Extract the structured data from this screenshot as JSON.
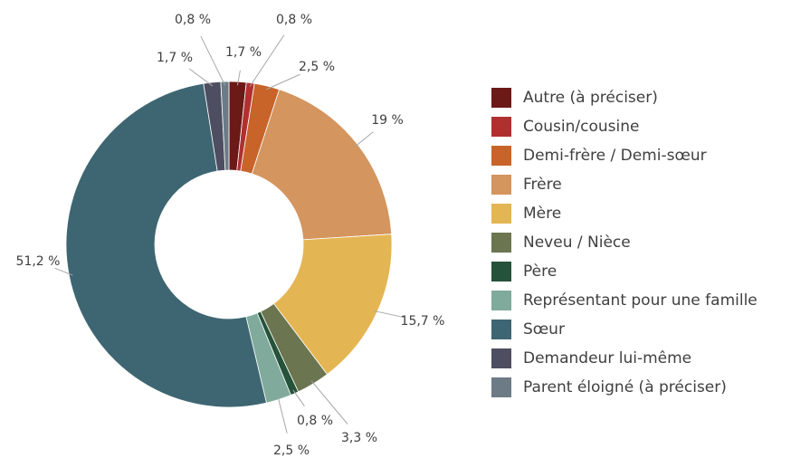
{
  "chart_data": {
    "type": "donut",
    "categories": [
      "Autre (à préciser)",
      "Cousin/cousine",
      "Demi-frère / Demi-sœur",
      "Frère",
      "Mère",
      "Neveu / Nièce",
      "Père",
      "Représentant pour une famille",
      "Sœur",
      "Demandeur lui-même",
      "Parent éloigné (à préciser)"
    ],
    "values": [
      1.7,
      0.8,
      2.5,
      19,
      15.7,
      3.3,
      0.8,
      2.5,
      51.2,
      1.7,
      0.8
    ],
    "value_labels": [
      "1,7 %",
      "0,8 %",
      "2,5 %",
      "19 %",
      "15,7 %",
      "3,3 %",
      "0,8 %",
      "2,5 %",
      "51,2 %",
      "1,7 %",
      "0,8 %"
    ],
    "colors": [
      "#6b1a17",
      "#b03030",
      "#c8642a",
      "#d4955e",
      "#e4b553",
      "#6b7550",
      "#25523a",
      "#7faa9c",
      "#3e6672",
      "#4e4e62",
      "#6d7b87"
    ],
    "legend": "right"
  }
}
